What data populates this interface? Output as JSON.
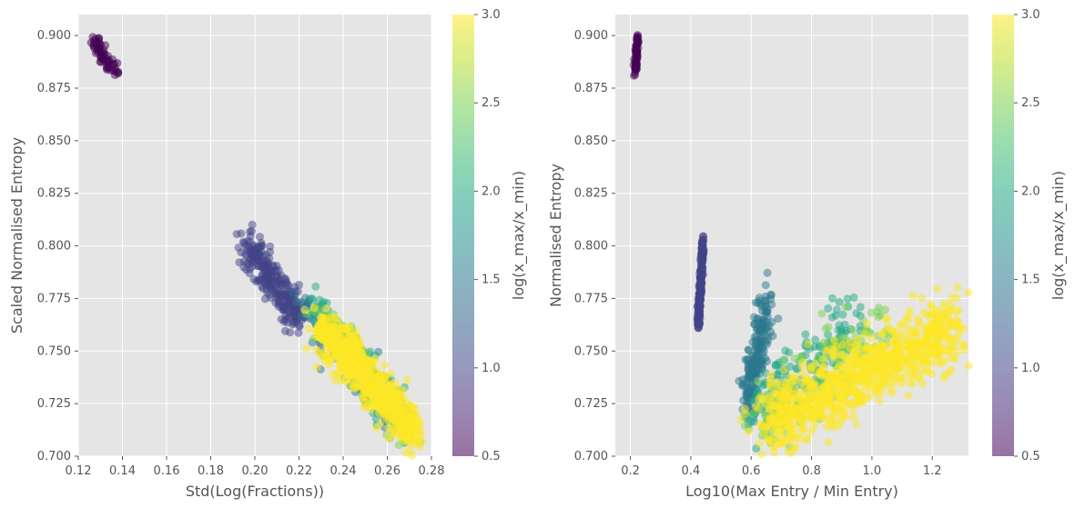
{
  "chart_data": [
    {
      "type": "scatter",
      "xlabel": "Std(Log(Fractions))",
      "ylabel": "Scaled Normalised Entropy",
      "xlim": [
        0.12,
        0.28
      ],
      "ylim": [
        0.7,
        0.91
      ],
      "xticks": [
        "0.12",
        "0.14",
        "0.16",
        "0.18",
        "0.20",
        "0.22",
        "0.24",
        "0.26",
        "0.28"
      ],
      "yticks": [
        "0.700",
        "0.725",
        "0.750",
        "0.775",
        "0.800",
        "0.825",
        "0.850",
        "0.875",
        "0.900"
      ],
      "grid": true,
      "colorbar": {
        "label": "log(x_max/x_min)",
        "range": [
          0.5,
          3.0
        ],
        "ticks": [
          "0.5",
          "1.0",
          "1.5",
          "2.0",
          "2.5",
          "3.0"
        ],
        "colormap": "viridis"
      },
      "clusters": [
        {
          "c": 0.5,
          "n": 60,
          "x": [
            0.126,
            0.137
          ],
          "y": [
            0.9,
            0.882
          ],
          "spread_x": 0.0015,
          "spread_y": 0.002
        },
        {
          "c": 1.0,
          "n": 260,
          "x": [
            0.196,
            0.22
          ],
          "y": [
            0.802,
            0.765
          ],
          "spread_x": 0.0025,
          "spread_y": 0.004
        },
        {
          "c": 1.5,
          "n": 140,
          "x": [
            0.222,
            0.264
          ],
          "y": [
            0.772,
            0.72
          ],
          "spread_x": 0.003,
          "spread_y": 0.005
        },
        {
          "c": 2.0,
          "n": 160,
          "x": [
            0.226,
            0.266
          ],
          "y": [
            0.772,
            0.718
          ],
          "spread_x": 0.003,
          "spread_y": 0.005
        },
        {
          "c": 2.5,
          "n": 150,
          "x": [
            0.228,
            0.27
          ],
          "y": [
            0.768,
            0.712
          ],
          "spread_x": 0.003,
          "spread_y": 0.005
        },
        {
          "c": 3.0,
          "n": 800,
          "x": [
            0.23,
            0.272
          ],
          "y": [
            0.762,
            0.712
          ],
          "spread_x": 0.003,
          "spread_y": 0.005
        }
      ]
    },
    {
      "type": "scatter",
      "xlabel": "Log10(Max Entry / Min Entry)",
      "ylabel": "Normalised Entropy",
      "xlim": [
        0.15,
        1.32
      ],
      "ylim": [
        0.7,
        0.91
      ],
      "xticks": [
        "0.2",
        "0.4",
        "0.6",
        "0.8",
        "1.0",
        "1.2"
      ],
      "yticks": [
        "0.700",
        "0.725",
        "0.750",
        "0.775",
        "0.800",
        "0.825",
        "0.850",
        "0.875",
        "0.900"
      ],
      "grid": true,
      "colorbar": {
        "label": "log(x_max/x_min)",
        "range": [
          0.5,
          3.0
        ],
        "ticks": [
          "0.5",
          "1.0",
          "1.5",
          "2.0",
          "2.5",
          "3.0"
        ],
        "colormap": "viridis"
      },
      "clusters": [
        {
          "c": 0.5,
          "n": 60,
          "x": [
            0.215,
            0.225
          ],
          "y": [
            0.882,
            0.9
          ],
          "spread_x": 0.002,
          "spread_y": 0.002
        },
        {
          "c": 1.0,
          "n": 220,
          "x": [
            0.425,
            0.44
          ],
          "y": [
            0.762,
            0.802
          ],
          "spread_x": 0.002,
          "spread_y": 0.002
        },
        {
          "c": 1.5,
          "n": 200,
          "x": [
            0.58,
            0.66
          ],
          "y": [
            0.725,
            0.772
          ],
          "spread_x": 0.01,
          "spread_y": 0.008
        },
        {
          "c": 2.0,
          "n": 150,
          "x": [
            0.6,
            0.95
          ],
          "y": [
            0.72,
            0.765
          ],
          "spread_x": 0.02,
          "spread_y": 0.008
        },
        {
          "c": 2.5,
          "n": 150,
          "x": [
            0.62,
            1.05
          ],
          "y": [
            0.715,
            0.765
          ],
          "spread_x": 0.03,
          "spread_y": 0.008
        },
        {
          "c": 3.0,
          "n": 900,
          "x": [
            0.64,
            1.28
          ],
          "y": [
            0.715,
            0.762
          ],
          "spread_x": 0.03,
          "spread_y": 0.008
        }
      ]
    }
  ]
}
